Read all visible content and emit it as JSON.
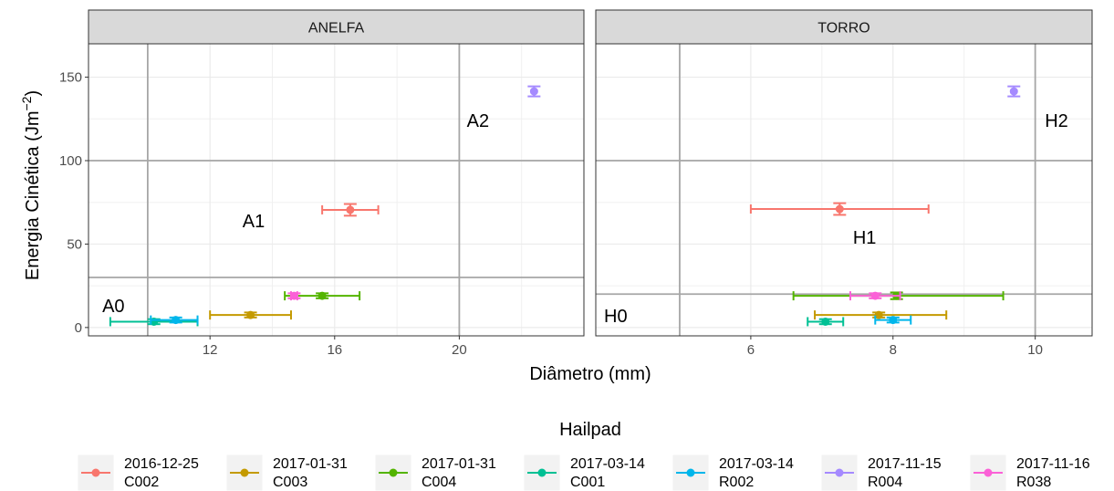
{
  "chart_data": {
    "type": "scatter",
    "xlabel": "Diâmetro (mm)",
    "ylabel": "Energia Cinética (Jm",
    "ylabel_sup": "−2",
    "ylabel_close": ")",
    "ylim": [
      -5,
      170
    ],
    "yticks": [
      0,
      50,
      100,
      150
    ],
    "grid": true,
    "legend": {
      "title": "Hailpad",
      "position": "bottom",
      "entries": [
        {
          "line1": "2016-12-25",
          "line2": "C002",
          "color": "#F8766D"
        },
        {
          "line1": "2017-01-31",
          "line2": "C003",
          "color": "#C49A00"
        },
        {
          "line1": "2017-01-31",
          "line2": "C004",
          "color": "#53B400"
        },
        {
          "line1": "2017-03-14",
          "line2": "C001",
          "color": "#00C094"
        },
        {
          "line1": "2017-03-14",
          "line2": "R002",
          "color": "#00B6EB"
        },
        {
          "line1": "2017-11-15",
          "line2": "R004",
          "color": "#A58AFF"
        },
        {
          "line1": "2017-11-16",
          "line2": "R038",
          "color": "#FB61D7"
        }
      ]
    },
    "panels": [
      {
        "strip": "ANELFA",
        "xlim": [
          8.1,
          24.0
        ],
        "xticks": [
          12,
          16,
          20
        ],
        "xtick_labels": [
          "12",
          "16",
          "20"
        ],
        "vlines": [
          10,
          20
        ],
        "hlines": [
          30,
          100
        ],
        "zone_labels": [
          {
            "text": "A0",
            "x": 8.9,
            "y": 13
          },
          {
            "text": "A1",
            "x": 13.4,
            "y": 64
          },
          {
            "text": "A2",
            "x": 20.6,
            "y": 124
          }
        ],
        "points": [
          {
            "series": 0,
            "x": 16.5,
            "xmin": 15.6,
            "xmax": 17.4,
            "y": 70.5,
            "ymin": 67,
            "ymax": 74
          },
          {
            "series": 1,
            "x": 13.3,
            "xmin": 12.0,
            "xmax": 14.6,
            "y": 7.5,
            "ymin": 6,
            "ymax": 9
          },
          {
            "series": 2,
            "x": 15.6,
            "xmin": 14.4,
            "xmax": 16.8,
            "y": 19,
            "ymin": 17.5,
            "ymax": 20.5
          },
          {
            "series": 3,
            "x": 10.2,
            "xmin": 8.8,
            "xmax": 11.6,
            "y": 3.5,
            "ymin": 2,
            "ymax": 5
          },
          {
            "series": 4,
            "x": 10.9,
            "xmin": 10.1,
            "xmax": 11.6,
            "y": 4.5,
            "ymin": 3,
            "ymax": 6
          },
          {
            "series": 5,
            "x": 22.4,
            "xmin": 22.4,
            "xmax": 22.4,
            "y": 141.5,
            "ymin": 138.5,
            "ymax": 144.5
          },
          {
            "series": 6,
            "x": 14.7,
            "xmin": 14.6,
            "xmax": 14.8,
            "y": 19,
            "ymin": 17.5,
            "ymax": 20.5
          }
        ]
      },
      {
        "strip": "TORRO",
        "xlim": [
          3.82,
          10.8
        ],
        "xticks": [
          6,
          8,
          10
        ],
        "xtick_labels": [
          "6",
          "8",
          "10"
        ],
        "vlines": [
          5,
          10
        ],
        "hlines": [
          20,
          100
        ],
        "zone_labels": [
          {
            "text": "H0",
            "x": 4.1,
            "y": 7
          },
          {
            "text": "H1",
            "x": 7.6,
            "y": 54
          },
          {
            "text": "H2",
            "x": 10.3,
            "y": 124
          }
        ],
        "points": [
          {
            "series": 0,
            "x": 7.25,
            "xmin": 6.0,
            "xmax": 8.5,
            "y": 71,
            "ymin": 67.5,
            "ymax": 74.5
          },
          {
            "series": 1,
            "x": 7.8,
            "xmin": 6.9,
            "xmax": 8.75,
            "y": 7.5,
            "ymin": 6,
            "ymax": 9
          },
          {
            "series": 2,
            "x": 8.05,
            "xmin": 6.6,
            "xmax": 9.55,
            "y": 19,
            "ymin": 17,
            "ymax": 21
          },
          {
            "series": 3,
            "x": 7.05,
            "xmin": 6.8,
            "xmax": 7.3,
            "y": 3.5,
            "ymin": 2,
            "ymax": 5
          },
          {
            "series": 4,
            "x": 8.0,
            "xmin": 7.75,
            "xmax": 8.25,
            "y": 4.5,
            "ymin": 3,
            "ymax": 6
          },
          {
            "series": 5,
            "x": 9.7,
            "xmin": 9.7,
            "xmax": 9.7,
            "y": 141.5,
            "ymin": 138.5,
            "ymax": 144.5
          },
          {
            "series": 6,
            "x": 7.75,
            "xmin": 7.4,
            "xmax": 8.1,
            "y": 19,
            "ymin": 17.5,
            "ymax": 20.5
          }
        ]
      }
    ]
  }
}
